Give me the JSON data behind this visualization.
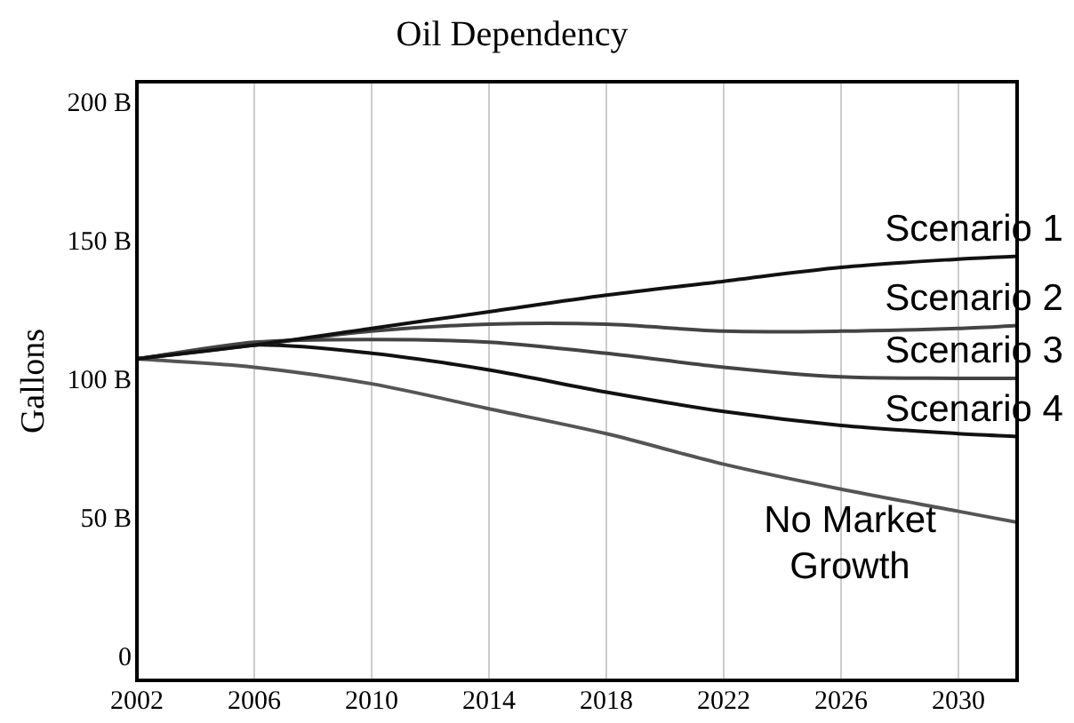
{
  "chart_data": {
    "type": "line",
    "title": "Oil Dependency",
    "ylabel": "Gallons",
    "x": [
      2002,
      2006,
      2010,
      2014,
      2018,
      2022,
      2026,
      2030,
      2032
    ],
    "series": [
      {
        "name": "Scenario 1",
        "color": "#111111",
        "values": [
          108,
          113,
          119,
          125,
          131,
          136,
          141,
          144,
          145
        ]
      },
      {
        "name": "Scenario 2",
        "color": "#444444",
        "values": [
          108,
          113,
          118,
          120.5,
          120.5,
          118,
          118,
          119,
          120
        ]
      },
      {
        "name": "Scenario 3",
        "color": "#444444",
        "values": [
          108,
          114,
          115,
          114,
          110,
          105,
          101.5,
          101,
          101
        ]
      },
      {
        "name": "Scenario 4",
        "color": "#111111",
        "values": [
          108,
          113,
          110,
          104,
          96,
          89,
          84,
          81,
          80
        ]
      },
      {
        "name": "No Market Growth",
        "color": "#555555",
        "values": [
          108,
          105,
          99,
          90,
          81,
          70,
          61,
          53,
          49
        ]
      }
    ],
    "xlim": [
      2002,
      2032
    ],
    "xticks": [
      2002,
      2006,
      2010,
      2014,
      2018,
      2022,
      2026,
      2030
    ],
    "ylim": [
      -8,
      208
    ],
    "yticks": [
      {
        "value": 0,
        "label": "0"
      },
      {
        "value": 50,
        "label": "50 B"
      },
      {
        "value": 100,
        "label": "100 B"
      },
      {
        "value": 150,
        "label": "150 B"
      },
      {
        "value": 200,
        "label": "200 B"
      }
    ],
    "grid": "x",
    "legend": false,
    "marker": "none",
    "line_style": "solid"
  }
}
